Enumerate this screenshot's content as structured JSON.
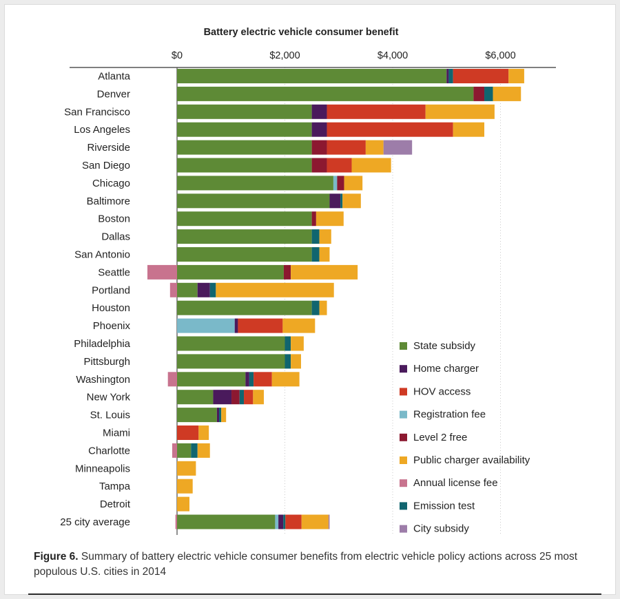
{
  "caption": {
    "label": "Figure 6.",
    "text": " Summary of battery electric vehicle consumer benefits from electric vehicle policy actions across 25 most populous U.S. cities in 2014"
  },
  "chart_data": {
    "type": "bar",
    "orientation": "horizontal",
    "stacked": true,
    "title": "Battery electric vehicle consumer benefit",
    "xlim": [
      -650,
      7000
    ],
    "xticks": [
      0,
      2000,
      4000,
      6000
    ],
    "xtick_labels": [
      "$0",
      "$2,000",
      "$4,000",
      "$6,000"
    ],
    "xaxis_position": "top",
    "grid": "vertical-dotted",
    "legend_position": "bottom-right",
    "categories": [
      "Atlanta",
      "Denver",
      "San Francisco",
      "Los Angeles",
      "Riverside",
      "San Diego",
      "Chicago",
      "Baltimore",
      "Boston",
      "Dallas",
      "San Antonio",
      "Seattle",
      "Portland",
      "Houston",
      "Phoenix",
      "Philadelphia",
      "Pittsburgh",
      "Washington",
      "New York",
      "St. Louis",
      "Miami",
      "Charlotte",
      "Minneapolis",
      "Tampa",
      "Detroit",
      "25 city average"
    ],
    "series": [
      {
        "name": "State subsidy",
        "color": "#5e8a36",
        "values": [
          5000,
          5500,
          2500,
          2500,
          2500,
          2500,
          2900,
          2830,
          2500,
          2500,
          2500,
          1980,
          380,
          2500,
          0,
          2000,
          2000,
          1270,
          670,
          740,
          0,
          260,
          0,
          0,
          0,
          1820
        ]
      },
      {
        "name": "Home charger",
        "color": "#4a1a5c",
        "values": [
          40,
          0,
          280,
          280,
          0,
          0,
          0,
          200,
          0,
          0,
          0,
          0,
          230,
          0,
          60,
          0,
          0,
          70,
          340,
          40,
          0,
          0,
          0,
          0,
          0,
          90
        ]
      },
      {
        "name": "HOV access",
        "color": "#cf3a24",
        "values": [
          1030,
          0,
          1830,
          2340,
          720,
          460,
          0,
          0,
          0,
          0,
          0,
          0,
          0,
          0,
          830,
          0,
          0,
          340,
          170,
          0,
          400,
          0,
          0,
          0,
          0,
          300
        ]
      },
      {
        "name": "Registration fee",
        "color": "#7ab9c9",
        "values": [
          0,
          0,
          0,
          0,
          0,
          0,
          70,
          0,
          0,
          0,
          0,
          0,
          0,
          0,
          1070,
          0,
          0,
          0,
          0,
          0,
          0,
          0,
          0,
          0,
          0,
          60
        ]
      },
      {
        "name": "Level 2 free",
        "color": "#8c1830",
        "values": [
          0,
          200,
          0,
          0,
          280,
          280,
          130,
          0,
          80,
          0,
          0,
          130,
          0,
          0,
          0,
          0,
          0,
          0,
          150,
          0,
          0,
          0,
          0,
          0,
          0,
          0
        ]
      },
      {
        "name": "Public charger availability",
        "color": "#eea824",
        "values": [
          290,
          520,
          1280,
          580,
          330,
          730,
          340,
          340,
          510,
          220,
          190,
          1240,
          2190,
          140,
          600,
          240,
          190,
          510,
          200,
          90,
          190,
          230,
          350,
          290,
          230,
          500
        ]
      },
      {
        "name": "Annual license fee",
        "color": "#c8738e",
        "values": [
          0,
          0,
          0,
          0,
          0,
          0,
          0,
          0,
          0,
          0,
          0,
          -550,
          -130,
          0,
          0,
          0,
          0,
          -170,
          0,
          0,
          0,
          -90,
          0,
          0,
          0,
          -30
        ]
      },
      {
        "name": "Emission test",
        "color": "#10656f",
        "values": [
          80,
          160,
          0,
          0,
          0,
          0,
          0,
          40,
          0,
          140,
          140,
          0,
          110,
          140,
          0,
          110,
          110,
          80,
          80,
          40,
          0,
          120,
          0,
          0,
          0,
          40
        ]
      },
      {
        "name": "City subsidy",
        "color": "#9d7da9",
        "values": [
          0,
          0,
          0,
          0,
          530,
          0,
          0,
          0,
          0,
          0,
          0,
          0,
          0,
          0,
          0,
          0,
          0,
          0,
          0,
          0,
          0,
          0,
          0,
          0,
          0,
          20
        ]
      }
    ],
    "stack_order": [
      "State subsidy",
      "Registration fee",
      "Home charger",
      "Level 2 free",
      "Emission test",
      "HOV access",
      "Public charger availability",
      "City subsidy"
    ]
  }
}
